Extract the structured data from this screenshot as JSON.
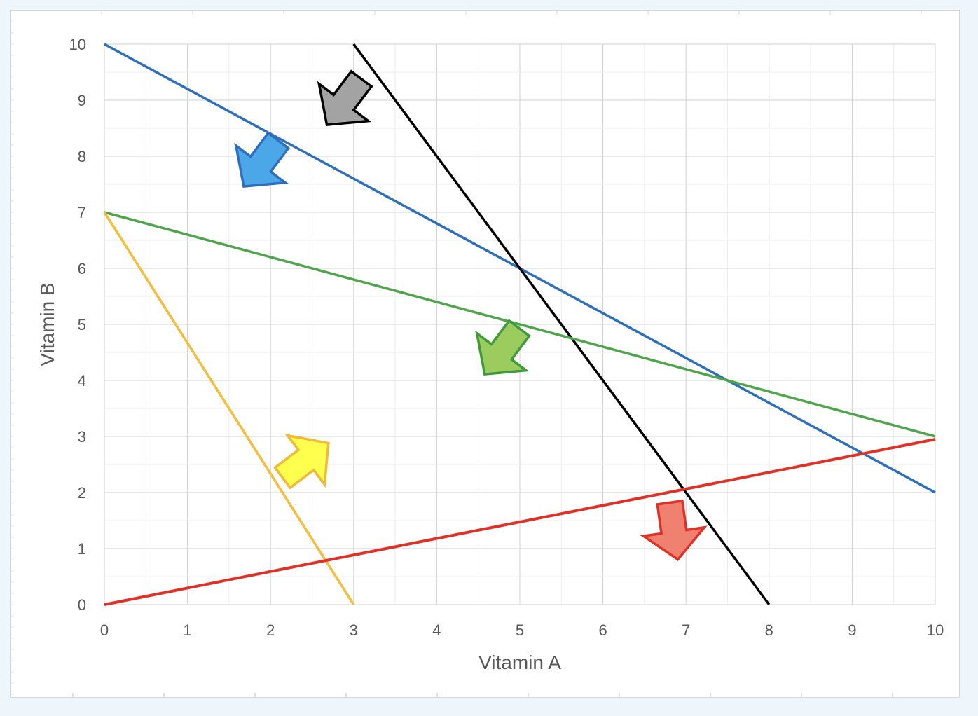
{
  "chart_data": {
    "type": "line",
    "title": "",
    "xlabel": "Vitamin A",
    "ylabel": "Vitamin B",
    "xlim": [
      0,
      10
    ],
    "ylim": [
      0,
      10
    ],
    "xticks": [
      "0",
      "1",
      "2",
      "3",
      "4",
      "5",
      "6",
      "7",
      "8",
      "9",
      "10"
    ],
    "yticks": [
      "0",
      "1",
      "2",
      "3",
      "4",
      "5",
      "6",
      "7",
      "8",
      "9",
      "10"
    ],
    "grid": true,
    "legend": "none",
    "series": [
      {
        "color": "#2e6fbd",
        "points": [
          [
            0,
            10
          ],
          [
            10,
            2
          ]
        ]
      },
      {
        "color": "#000000",
        "points": [
          [
            3,
            10
          ],
          [
            8,
            0
          ]
        ]
      },
      {
        "color": "#4ea54b",
        "points": [
          [
            0,
            7
          ],
          [
            10,
            3
          ]
        ]
      },
      {
        "color": "#f5bd3c",
        "points": [
          [
            0,
            7
          ],
          [
            3,
            0
          ]
        ]
      },
      {
        "color": "#e03127",
        "points": [
          [
            0,
            0
          ],
          [
            10,
            2.95
          ]
        ]
      }
    ],
    "annotations": [
      {
        "type": "arrow",
        "direction": "down-left",
        "fill": "#a3a3a3",
        "stroke": "#000000",
        "at": [
          2.9,
          9.0
        ]
      },
      {
        "type": "arrow",
        "direction": "down-left",
        "fill": "#4ca7e8",
        "stroke": "#2e6fbd",
        "at": [
          1.9,
          7.9
        ]
      },
      {
        "type": "arrow",
        "direction": "down-left",
        "fill": "#9ccc5e",
        "stroke": "#3f9a3c",
        "at": [
          4.8,
          4.55
        ]
      },
      {
        "type": "arrow",
        "direction": "up-right",
        "fill": "#ffff4d",
        "stroke": "#f0b93a",
        "at": [
          2.4,
          2.55
        ]
      },
      {
        "type": "arrow",
        "direction": "down",
        "fill": "#f08070",
        "stroke": "#e03127",
        "at": [
          6.85,
          1.35
        ]
      }
    ]
  }
}
